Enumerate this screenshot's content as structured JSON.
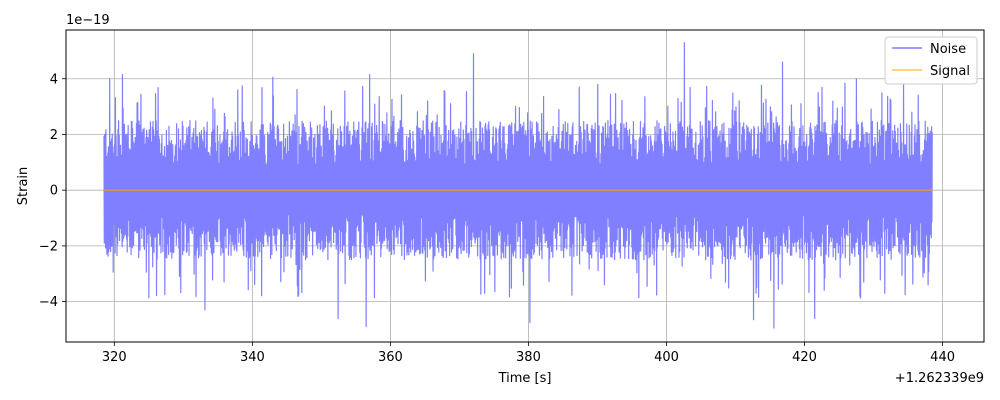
{
  "chart_data": {
    "type": "line",
    "title": "",
    "xlabel": "Time [s]",
    "ylabel": "Strain",
    "x_offset_text": "+1.262339e9",
    "y_scale_text": "1e−19",
    "xlim": [
      313,
      446
    ],
    "ylim": [
      -5.45e-19,
      5.75e-19
    ],
    "x_ticks": [
      320,
      340,
      360,
      380,
      400,
      420,
      440
    ],
    "x_tick_labels": [
      "320",
      "340",
      "360",
      "380",
      "400",
      "420",
      "440"
    ],
    "y_ticks": [
      -4e-19,
      -2e-19,
      0,
      2e-19,
      4e-19
    ],
    "y_tick_labels": [
      "−4",
      "−2",
      "0",
      "2",
      "4"
    ],
    "grid": true,
    "legend_position": "upper right",
    "series": [
      {
        "name": "Noise",
        "color": "#7f7fff",
        "x_range": [
          318.5,
          438.5
        ],
        "envelope_typical": 2.5e-19,
        "envelope_max": 5.3e-19,
        "envelope_min": -4.9e-19,
        "peaks_high": [
          [
            319.3,
            4e-19
          ],
          [
            321.2,
            4.15e-19
          ],
          [
            343.0,
            4.05e-19
          ],
          [
            357.0,
            4.15e-19
          ],
          [
            372.0,
            4.9e-19
          ],
          [
            402.6,
            5.3e-19
          ],
          [
            416.8,
            4.6e-19
          ],
          [
            427.5,
            4e-19
          ]
        ],
        "peaks_low": [
          [
            333.1,
            -4.3e-19
          ],
          [
            352.4,
            -4.6e-19
          ],
          [
            356.5,
            -4.9e-19
          ],
          [
            380.2,
            -4.75e-19
          ],
          [
            412.6,
            -4.65e-19
          ],
          [
            415.6,
            -4.95e-19
          ],
          [
            421.5,
            -4.6e-19
          ]
        ]
      },
      {
        "name": "Signal",
        "color": "#ffa500",
        "x": [
          318.5,
          438.5
        ],
        "y": [
          0,
          0
        ]
      }
    ]
  }
}
